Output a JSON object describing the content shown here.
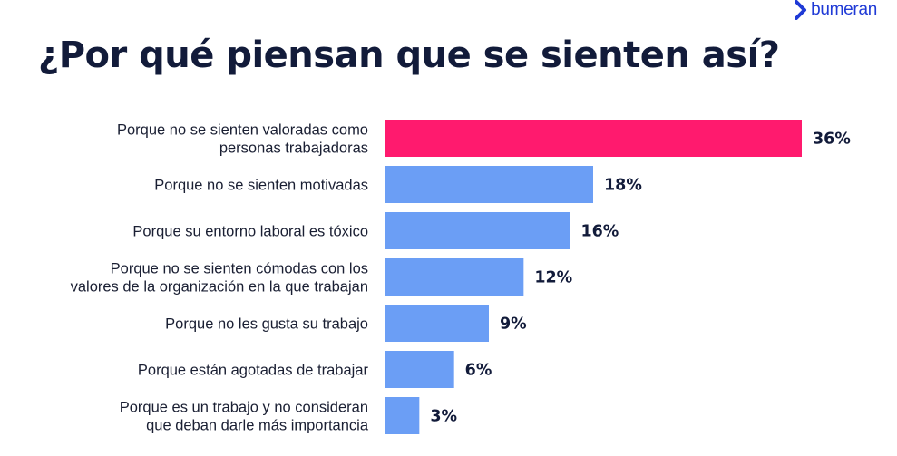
{
  "brand": {
    "name": "bumeran",
    "accent": "#1f3ad6"
  },
  "colors": {
    "highlight": "#ff1a6e",
    "bar": "#6b9ef5"
  },
  "chart_data": {
    "type": "bar",
    "orientation": "horizontal",
    "title": "¿Por qué piensan que se sienten así?",
    "categories": [
      [
        "Porque no se sienten valoradas como",
        "personas trabajadoras"
      ],
      [
        "Porque no se sienten motivadas"
      ],
      [
        "Porque su entorno laboral es tóxico"
      ],
      [
        "Porque no se sienten cómodas con los",
        "valores de la organización en la que trabajan"
      ],
      [
        "Porque no les gusta su trabajo"
      ],
      [
        "Porque están agotadas de trabajar"
      ],
      [
        "Porque es un trabajo y no consideran",
        "que deban darle más importancia"
      ]
    ],
    "values": [
      36,
      18,
      16,
      12,
      9,
      6,
      3
    ],
    "value_labels": [
      "36%",
      "18%",
      "16%",
      "12%",
      "9%",
      "6%",
      "3%"
    ],
    "highlight_index": 0,
    "xlim": [
      0,
      36
    ],
    "grid": false,
    "legend": false
  }
}
